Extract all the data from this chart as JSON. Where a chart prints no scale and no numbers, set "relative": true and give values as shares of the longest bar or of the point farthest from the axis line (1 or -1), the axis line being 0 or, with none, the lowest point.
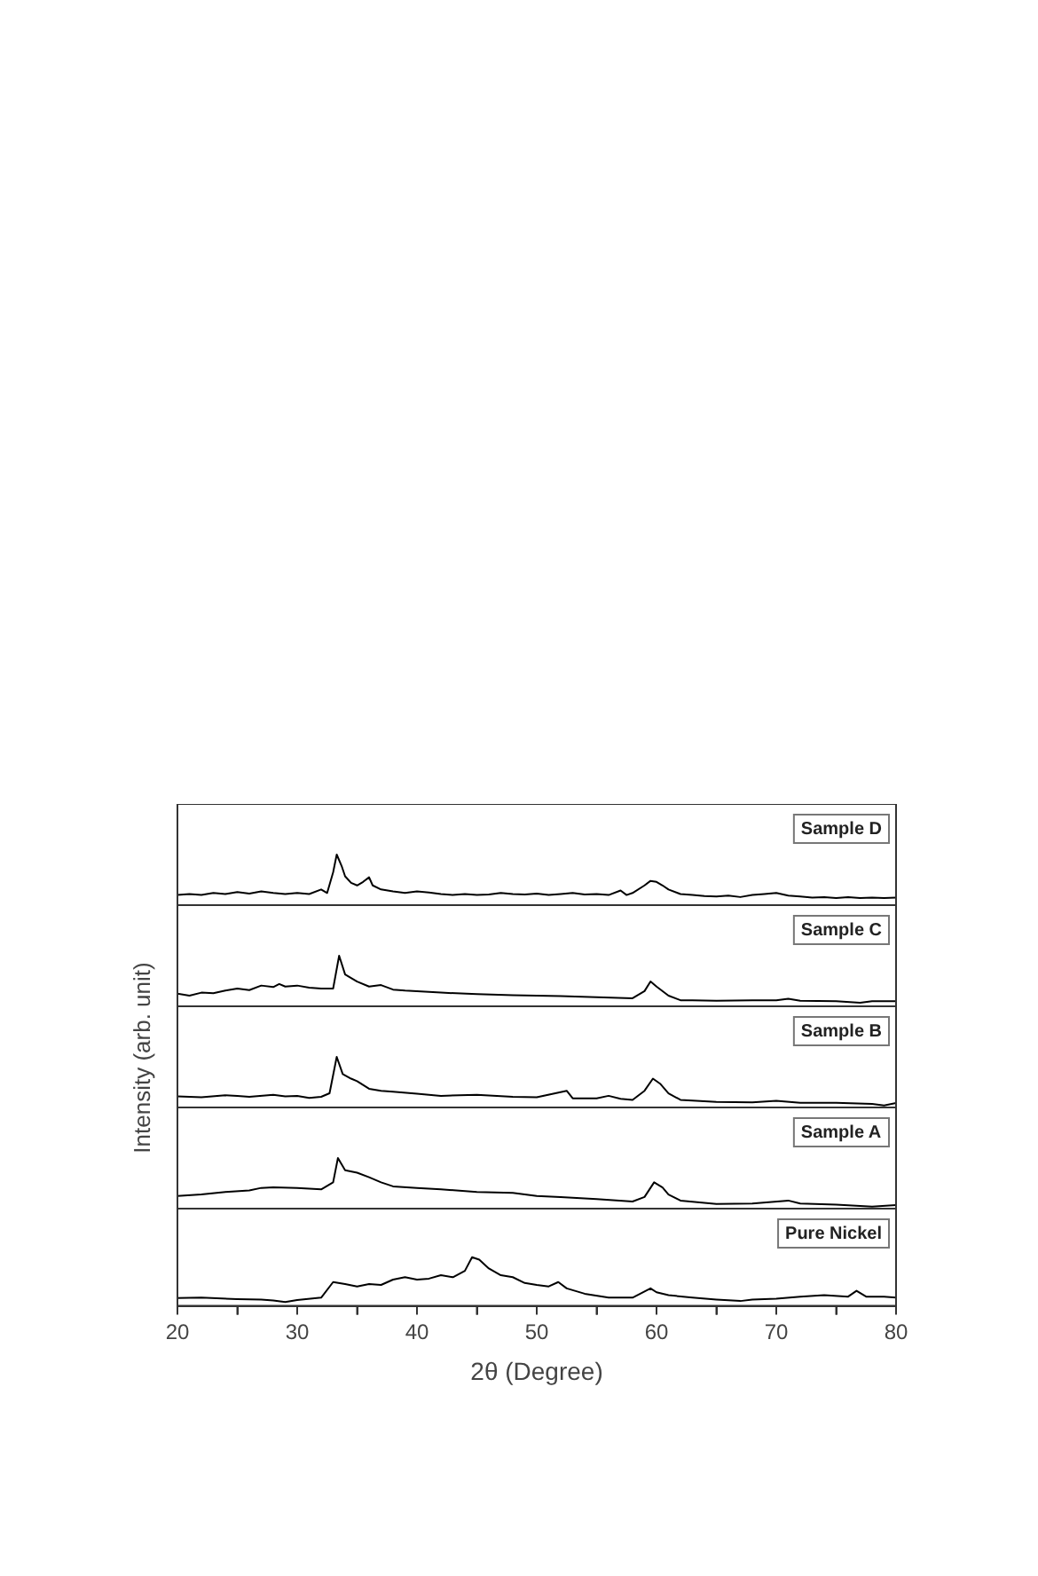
{
  "chart_data": [
    {
      "type": "line",
      "relative": true,
      "color": "#000000",
      "xlim": [
        20,
        80
      ],
      "tick_labels": false,
      "annotations": [
        "Sample D"
      ],
      "x": [
        20,
        21,
        22,
        23,
        24,
        25,
        26,
        27,
        28,
        29,
        30,
        31,
        32,
        32.5,
        33,
        33.3,
        33.7,
        34,
        34.5,
        35,
        35.5,
        36,
        36.3,
        37,
        38,
        39,
        40,
        41,
        42,
        43,
        44,
        45,
        46,
        47,
        48,
        49,
        50,
        51,
        52,
        53,
        54,
        55,
        56,
        57,
        57.5,
        58,
        59,
        59.5,
        60,
        60.5,
        61,
        62,
        63,
        64,
        65,
        66,
        67,
        68,
        69,
        70,
        71,
        72,
        73,
        74,
        75,
        76,
        77,
        78,
        79,
        80
      ],
      "values": [
        0.2,
        0.22,
        0.2,
        0.24,
        0.22,
        0.26,
        0.23,
        0.27,
        0.24,
        0.22,
        0.24,
        0.22,
        0.31,
        0.24,
        0.65,
        1,
        0.78,
        0.57,
        0.44,
        0.39,
        0.46,
        0.55,
        0.39,
        0.31,
        0.27,
        0.24,
        0.27,
        0.25,
        0.22,
        0.2,
        0.22,
        0.2,
        0.21,
        0.24,
        0.22,
        0.21,
        0.23,
        0.2,
        0.22,
        0.24,
        0.21,
        0.22,
        0.2,
        0.29,
        0.2,
        0.24,
        0.39,
        0.48,
        0.46,
        0.39,
        0.31,
        0.22,
        0.2,
        0.18,
        0.17,
        0.19,
        0.16,
        0.2,
        0.22,
        0.24,
        0.19,
        0.17,
        0.15,
        0.16,
        0.14,
        0.16,
        0.14,
        0.15,
        0.14,
        0.15
      ]
    },
    {
      "type": "line",
      "relative": true,
      "color": "#000000",
      "xlim": [
        20,
        80
      ],
      "tick_labels": false,
      "annotations": [
        "Sample C"
      ],
      "x": [
        20,
        21,
        22,
        23,
        24,
        25,
        26,
        27,
        28,
        28.5,
        29,
        30,
        31,
        32,
        33,
        33.5,
        34,
        35,
        36,
        37,
        38,
        39,
        40,
        42,
        45,
        48,
        50,
        52,
        55,
        58,
        59,
        59.5,
        60,
        61,
        62,
        63,
        65,
        68,
        70,
        71,
        72,
        75,
        77,
        78,
        80
      ],
      "values": [
        0.25,
        0.21,
        0.27,
        0.26,
        0.31,
        0.35,
        0.32,
        0.41,
        0.38,
        0.44,
        0.39,
        0.41,
        0.37,
        0.35,
        0.35,
        1,
        0.63,
        0.49,
        0.39,
        0.42,
        0.33,
        0.31,
        0.3,
        0.27,
        0.24,
        0.22,
        0.21,
        0.2,
        0.18,
        0.16,
        0.3,
        0.49,
        0.39,
        0.21,
        0.12,
        0.12,
        0.11,
        0.12,
        0.12,
        0.15,
        0.11,
        0.1,
        0.07,
        0.1,
        0.1
      ]
    },
    {
      "type": "line",
      "relative": true,
      "color": "#000000",
      "xlim": [
        20,
        80
      ],
      "tick_labels": false,
      "ylabel": "Intensity (arb. unit)",
      "annotations": [
        "Sample B"
      ],
      "x": [
        20,
        22,
        24,
        25,
        26,
        28,
        29,
        30,
        31,
        32,
        32.7,
        33.3,
        33.8,
        34.5,
        35,
        36,
        37,
        38,
        40,
        42,
        45,
        48,
        50,
        52.5,
        53,
        55,
        56,
        57,
        58,
        59,
        59.7,
        60.3,
        61,
        62,
        65,
        68,
        70,
        72,
        75,
        78,
        79,
        80
      ],
      "values": [
        0.22,
        0.2,
        0.24,
        0.23,
        0.21,
        0.25,
        0.22,
        0.23,
        0.19,
        0.21,
        0.28,
        1,
        0.66,
        0.57,
        0.52,
        0.37,
        0.33,
        0.31,
        0.27,
        0.23,
        0.25,
        0.21,
        0.2,
        0.33,
        0.18,
        0.18,
        0.23,
        0.17,
        0.15,
        0.33,
        0.57,
        0.47,
        0.28,
        0.15,
        0.11,
        0.1,
        0.13,
        0.09,
        0.09,
        0.07,
        0.04,
        0.09
      ]
    },
    {
      "type": "line",
      "relative": true,
      "color": "#000000",
      "xlim": [
        20,
        80
      ],
      "tick_labels": false,
      "annotations": [
        "Sample A"
      ],
      "x": [
        20,
        22,
        24,
        26,
        27,
        28,
        30,
        32,
        33,
        33.4,
        34,
        35,
        36,
        37,
        38,
        40,
        42,
        45,
        48,
        50,
        52,
        55,
        58,
        59,
        59.8,
        60.5,
        61,
        62,
        65,
        68,
        71,
        72,
        75,
        78,
        80
      ],
      "values": [
        0.25,
        0.28,
        0.33,
        0.36,
        0.41,
        0.42,
        0.41,
        0.38,
        0.52,
        1,
        0.76,
        0.71,
        0.62,
        0.52,
        0.44,
        0.41,
        0.38,
        0.33,
        0.31,
        0.25,
        0.23,
        0.19,
        0.14,
        0.23,
        0.52,
        0.42,
        0.28,
        0.16,
        0.09,
        0.1,
        0.16,
        0.1,
        0.08,
        0.04,
        0.07
      ]
    },
    {
      "type": "line",
      "relative": true,
      "color": "#000000",
      "xlim": [
        20,
        80
      ],
      "tick_labels": "x",
      "xlabel": "2θ (Degree)",
      "annotations": [
        "Pure Nickel"
      ],
      "xticks": [
        20,
        {
          "value": 25,
          "label": null
        },
        30,
        {
          "value": 35,
          "label": null
        },
        40,
        {
          "value": 45,
          "label": null
        },
        50,
        {
          "value": 55,
          "label": null
        },
        60,
        {
          "value": 65,
          "label": null
        },
        70,
        {
          "value": 75,
          "label": null
        },
        80
      ],
      "x": [
        20,
        22,
        25,
        27,
        28,
        29,
        30,
        32,
        33,
        34,
        35,
        36,
        37,
        38,
        39,
        40,
        41,
        42,
        43,
        44,
        44.6,
        45.2,
        46,
        47,
        48,
        49,
        50,
        51,
        51.8,
        52.5,
        54,
        56,
        58,
        59.5,
        60,
        61,
        63,
        65,
        67,
        68,
        70,
        72,
        74,
        76,
        76.7,
        77.5,
        79,
        80
      ],
      "values": [
        0.16,
        0.17,
        0.14,
        0.13,
        0.11,
        0.08,
        0.12,
        0.17,
        0.49,
        0.45,
        0.4,
        0.45,
        0.43,
        0.54,
        0.59,
        0.54,
        0.56,
        0.63,
        0.59,
        0.72,
        1,
        0.95,
        0.77,
        0.63,
        0.59,
        0.47,
        0.43,
        0.4,
        0.49,
        0.36,
        0.25,
        0.17,
        0.17,
        0.36,
        0.28,
        0.22,
        0.17,
        0.13,
        0.1,
        0.13,
        0.15,
        0.19,
        0.22,
        0.19,
        0.31,
        0.19,
        0.19,
        0.17
      ]
    }
  ]
}
